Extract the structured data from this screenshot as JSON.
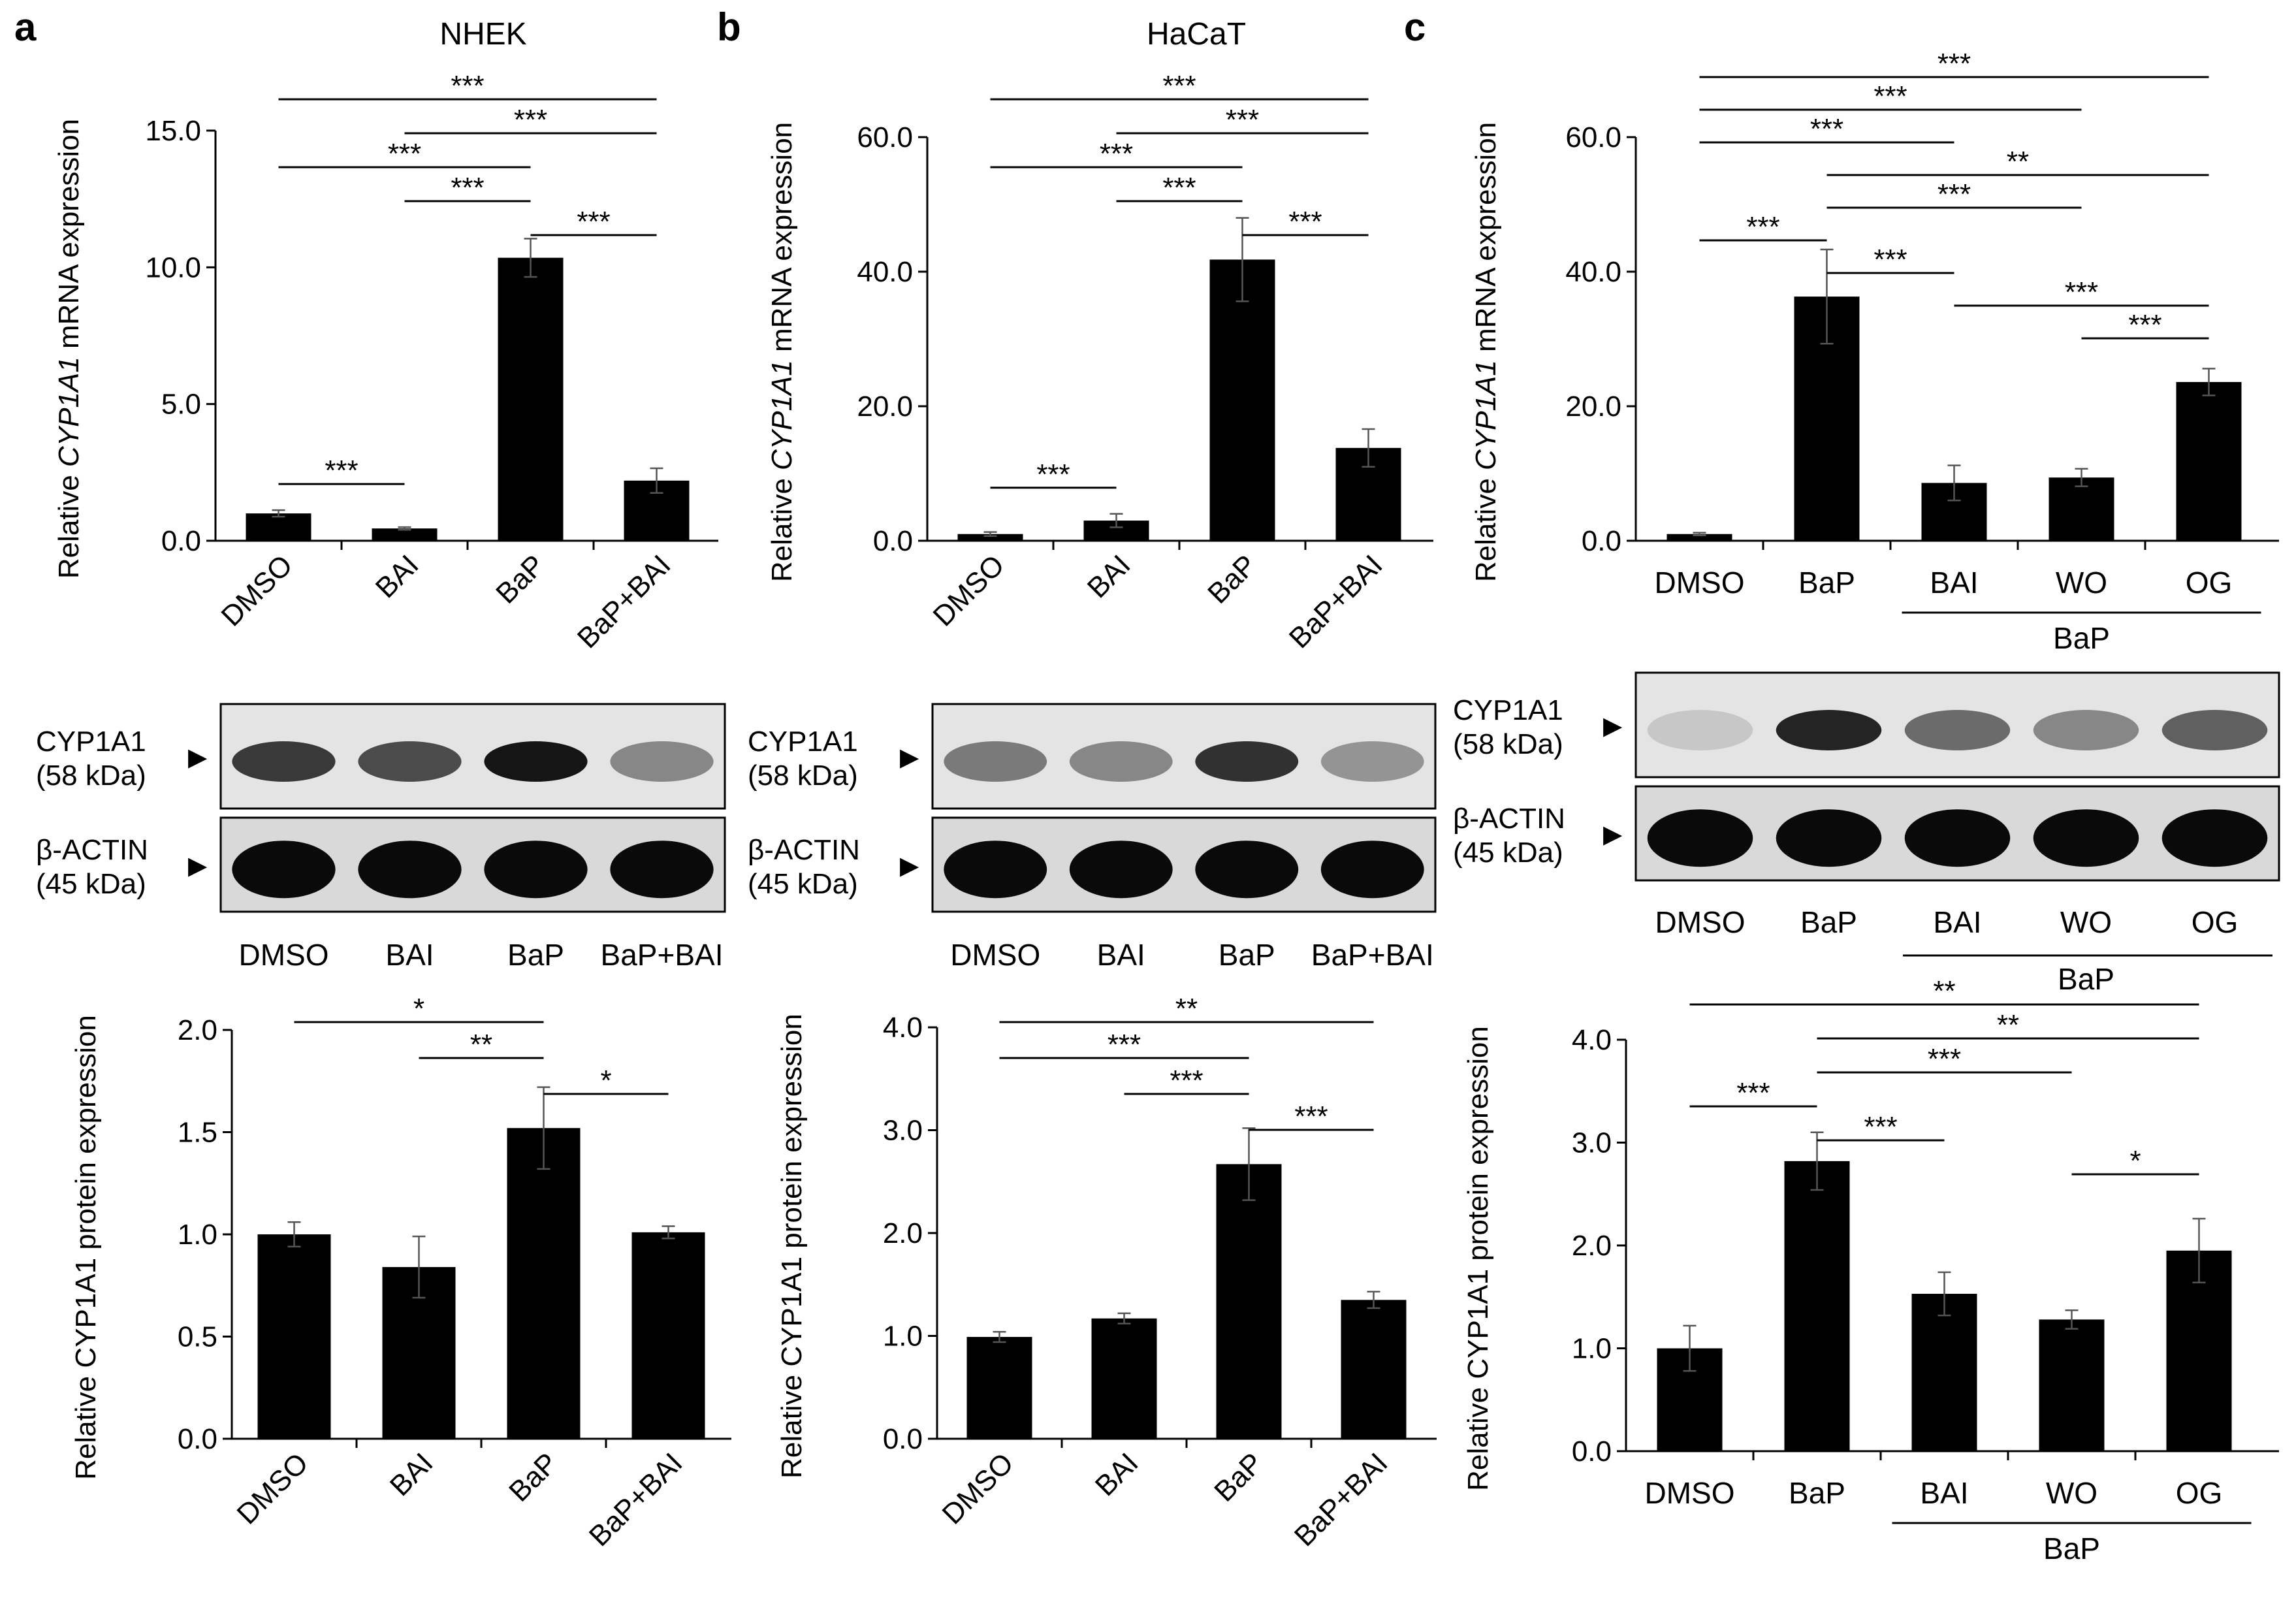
{
  "panel_letters": [
    "a",
    "b",
    "c"
  ],
  "panel_titles": [
    "NHEK",
    "HaCaT",
    ""
  ],
  "treatment_group_label": "BaP",
  "mrna_ylabel": {
    "pre": "Relative ",
    "gene": "CYP1A1",
    "post": " mRNA expression"
  },
  "protein_ylabel": "Relative CYP1A1 protein expression",
  "blot": {
    "target_label": [
      "CYP1A1",
      "(58 kDa)"
    ],
    "control_label": [
      "β-ACTIN",
      "(45 kDa)"
    ],
    "marker": "▶",
    "bands": {
      "a": {
        "target": [
          0.78,
          0.7,
          0.95,
          0.42
        ],
        "control": [
          1,
          1,
          1,
          1
        ]
      },
      "b": {
        "target": [
          0.48,
          0.42,
          0.82,
          0.36
        ],
        "control": [
          1,
          1,
          1,
          1
        ]
      },
      "c": {
        "target": [
          0.12,
          0.88,
          0.55,
          0.42,
          0.6
        ],
        "control": [
          1,
          1,
          1,
          1,
          1
        ]
      }
    },
    "lane_labels": {
      "a": [
        "DMSO",
        "BAI",
        "BaP",
        "BaP+BAI"
      ],
      "b": [
        "DMSO",
        "BAI",
        "BaP",
        "BaP+BAI"
      ],
      "c": [
        "DMSO",
        "BaP",
        "BAI",
        "WO",
        "OG"
      ]
    }
  },
  "chart_data": [
    {
      "id": "a-mrna",
      "type": "bar",
      "categories": [
        "DMSO",
        "BAI",
        "BaP",
        "BaP+BAI"
      ],
      "values": [
        1.0,
        0.45,
        10.35,
        2.2
      ],
      "errors": [
        0.12,
        0.05,
        0.7,
        0.45
      ],
      "ylim": [
        0,
        15
      ],
      "yticks": [
        "0.0",
        "5.0",
        "10.0",
        "15.0"
      ],
      "ytick_values": [
        0,
        5,
        10,
        15
      ],
      "ylabel": "Relative CYP1A1 mRNA expression",
      "significance": [
        {
          "from": 0,
          "to": 3,
          "label": "***"
        },
        {
          "from": 1,
          "to": 3,
          "label": "***"
        },
        {
          "from": 0,
          "to": 2,
          "label": "***"
        },
        {
          "from": 1,
          "to": 2,
          "label": "***"
        },
        {
          "from": 2,
          "to": 3,
          "label": "***"
        },
        {
          "from": 0,
          "to": 1,
          "label": "***"
        }
      ]
    },
    {
      "id": "b-mrna",
      "type": "bar",
      "categories": [
        "DMSO",
        "BAI",
        "BaP",
        "BaP+BAI"
      ],
      "values": [
        1.0,
        3.0,
        41.8,
        13.8
      ],
      "errors": [
        0.3,
        1.0,
        6.2,
        2.8
      ],
      "ylim": [
        0,
        60
      ],
      "yticks": [
        "0.0",
        "20.0",
        "40.0",
        "60.0"
      ],
      "ytick_values": [
        0,
        20,
        40,
        60
      ],
      "ylabel": "Relative CYP1A1 mRNA expression",
      "significance": [
        {
          "from": 0,
          "to": 3,
          "label": "***"
        },
        {
          "from": 1,
          "to": 3,
          "label": "***"
        },
        {
          "from": 0,
          "to": 2,
          "label": "***"
        },
        {
          "from": 1,
          "to": 2,
          "label": "***"
        },
        {
          "from": 2,
          "to": 3,
          "label": "***"
        },
        {
          "from": 0,
          "to": 1,
          "label": "***"
        }
      ]
    },
    {
      "id": "c-mrna",
      "type": "bar",
      "categories": [
        "DMSO",
        "BaP",
        "BAI",
        "WO",
        "OG"
      ],
      "values": [
        1.0,
        36.3,
        8.6,
        9.4,
        23.6
      ],
      "errors": [
        0.2,
        7.0,
        2.6,
        1.3,
        2.0
      ],
      "ylim": [
        0,
        60
      ],
      "yticks": [
        "0.0",
        "20.0",
        "40.0",
        "60.0"
      ],
      "ytick_values": [
        0,
        20,
        40,
        60
      ],
      "ylabel": "Relative CYP1A1 mRNA expression",
      "significance": [
        {
          "from": 0,
          "to": 4,
          "label": "***"
        },
        {
          "from": 0,
          "to": 3,
          "label": "***"
        },
        {
          "from": 0,
          "to": 2,
          "label": "***"
        },
        {
          "from": 1,
          "to": 4,
          "label": "**"
        },
        {
          "from": 1,
          "to": 3,
          "label": "***"
        },
        {
          "from": 0,
          "to": 1,
          "label": "***"
        },
        {
          "from": 1,
          "to": 2,
          "label": "***"
        },
        {
          "from": 2,
          "to": 4,
          "label": "***"
        },
        {
          "from": 3,
          "to": 4,
          "label": "***"
        }
      ]
    },
    {
      "id": "a-protein",
      "type": "bar",
      "categories": [
        "DMSO",
        "BAI",
        "BaP",
        "BaP+BAI"
      ],
      "values": [
        1.0,
        0.84,
        1.52,
        1.01
      ],
      "errors": [
        0.06,
        0.15,
        0.2,
        0.03
      ],
      "ylim": [
        0,
        2
      ],
      "yticks": [
        "0.0",
        "0.5",
        "1.0",
        "1.5",
        "2.0"
      ],
      "ytick_values": [
        0,
        0.5,
        1,
        1.5,
        2
      ],
      "ylabel": "Relative CYP1A1 protein expression",
      "significance": [
        {
          "from": 0,
          "to": 2,
          "label": "*"
        },
        {
          "from": 1,
          "to": 2,
          "label": "**"
        },
        {
          "from": 2,
          "to": 3,
          "label": "*"
        }
      ]
    },
    {
      "id": "b-protein",
      "type": "bar",
      "categories": [
        "DMSO",
        "BAI",
        "BaP",
        "BaP+BAI"
      ],
      "values": [
        0.99,
        1.17,
        2.67,
        1.35
      ],
      "errors": [
        0.05,
        0.05,
        0.35,
        0.08
      ],
      "ylim": [
        0,
        4
      ],
      "yticks": [
        "0.0",
        "1.0",
        "2.0",
        "3.0",
        "4.0"
      ],
      "ytick_values": [
        0,
        1,
        2,
        3,
        4
      ],
      "ylabel": "Relative CYP1A1 protein expression",
      "significance": [
        {
          "from": 0,
          "to": 3,
          "label": "**"
        },
        {
          "from": 0,
          "to": 2,
          "label": "***"
        },
        {
          "from": 1,
          "to": 2,
          "label": "***"
        },
        {
          "from": 2,
          "to": 3,
          "label": "***"
        }
      ]
    },
    {
      "id": "c-protein",
      "type": "bar",
      "categories": [
        "DMSO",
        "BaP",
        "BAI",
        "WO",
        "OG"
      ],
      "values": [
        1.0,
        2.82,
        1.53,
        1.28,
        1.95
      ],
      "errors": [
        0.22,
        0.28,
        0.21,
        0.09,
        0.31
      ],
      "ylim": [
        0,
        4
      ],
      "yticks": [
        "0.0",
        "1.0",
        "2.0",
        "3.0",
        "4.0"
      ],
      "ytick_values": [
        0,
        1,
        2,
        3,
        4
      ],
      "ylabel": "Relative CYP1A1 protein expression",
      "significance": [
        {
          "from": 0,
          "to": 4,
          "label": "**"
        },
        {
          "from": 1,
          "to": 4,
          "label": "**"
        },
        {
          "from": 1,
          "to": 3,
          "label": "***"
        },
        {
          "from": 0,
          "to": 1,
          "label": "***"
        },
        {
          "from": 1,
          "to": 2,
          "label": "***"
        },
        {
          "from": 3,
          "to": 4,
          "label": "*"
        }
      ]
    }
  ]
}
